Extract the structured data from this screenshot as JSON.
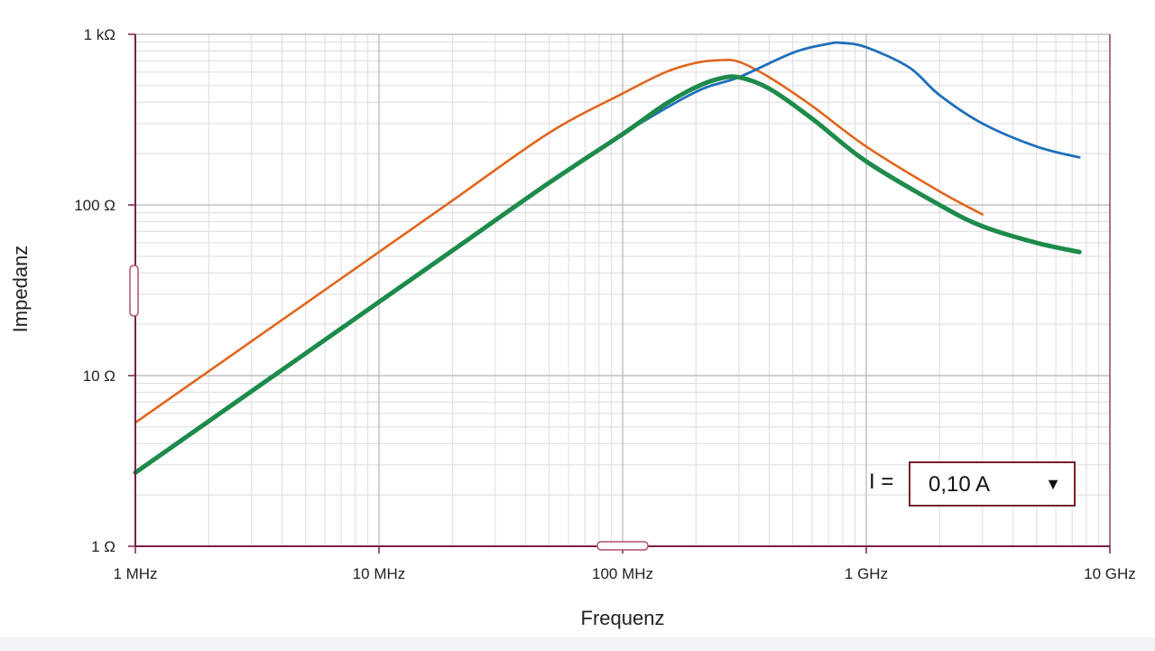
{
  "chart_data": {
    "type": "line",
    "xscale": "log",
    "yscale": "log",
    "xlim": [
      1000000,
      10000000000
    ],
    "ylim": [
      1,
      1000
    ],
    "xlabel": "Frequenz",
    "ylabel": "Impedanz",
    "x_ticks": [
      {
        "value": 1000000,
        "label": "1 MHz"
      },
      {
        "value": 10000000,
        "label": "10 MHz"
      },
      {
        "value": 100000000,
        "label": "100 MHz"
      },
      {
        "value": 1000000000,
        "label": "1 GHz"
      },
      {
        "value": 10000000000,
        "label": "10 GHz"
      }
    ],
    "y_ticks": [
      {
        "value": 1,
        "label": "1 Ω"
      },
      {
        "value": 10,
        "label": "10 Ω"
      },
      {
        "value": 100,
        "label": "100 Ω"
      },
      {
        "value": 1000,
        "label": "1 kΩ"
      }
    ],
    "grid": true,
    "series": [
      {
        "color": "#e0661e",
        "x": [
          1000000,
          2000000,
          5000000,
          10000000,
          20000000,
          50000000,
          100000000,
          150000000,
          200000000,
          250000000,
          300000000,
          400000000,
          600000000,
          1000000000,
          2000000000,
          3000000000
        ],
        "y": [
          5.3,
          10.6,
          26.5,
          53,
          106,
          265,
          450,
          600,
          680,
          705,
          690,
          560,
          380,
          220,
          120,
          88
        ]
      },
      {
        "color": "#1f6fba",
        "x": [
          1000000,
          2000000,
          5000000,
          10000000,
          20000000,
          50000000,
          100000000,
          200000000,
          300000000,
          500000000,
          700000000,
          800000000,
          1000000000,
          1500000000,
          2000000000,
          3000000000,
          5000000000,
          7500000000
        ],
        "y": [
          2.7,
          5.4,
          13.5,
          27,
          54,
          135,
          260,
          460,
          560,
          780,
          880,
          890,
          840,
          640,
          440,
          300,
          220,
          190
        ]
      },
      {
        "color": "#1e8a4c",
        "x": [
          1000000,
          2000000,
          5000000,
          10000000,
          20000000,
          50000000,
          100000000,
          150000000,
          200000000,
          250000000,
          300000000,
          400000000,
          600000000,
          1000000000,
          2000000000,
          3000000000,
          5000000000,
          7500000000
        ],
        "y": [
          2.7,
          5.4,
          13.5,
          27,
          54,
          135,
          260,
          390,
          490,
          550,
          560,
          480,
          320,
          180,
          100,
          75,
          60,
          53
        ]
      }
    ]
  },
  "control": {
    "label": "I =",
    "value": "0,10 A"
  }
}
